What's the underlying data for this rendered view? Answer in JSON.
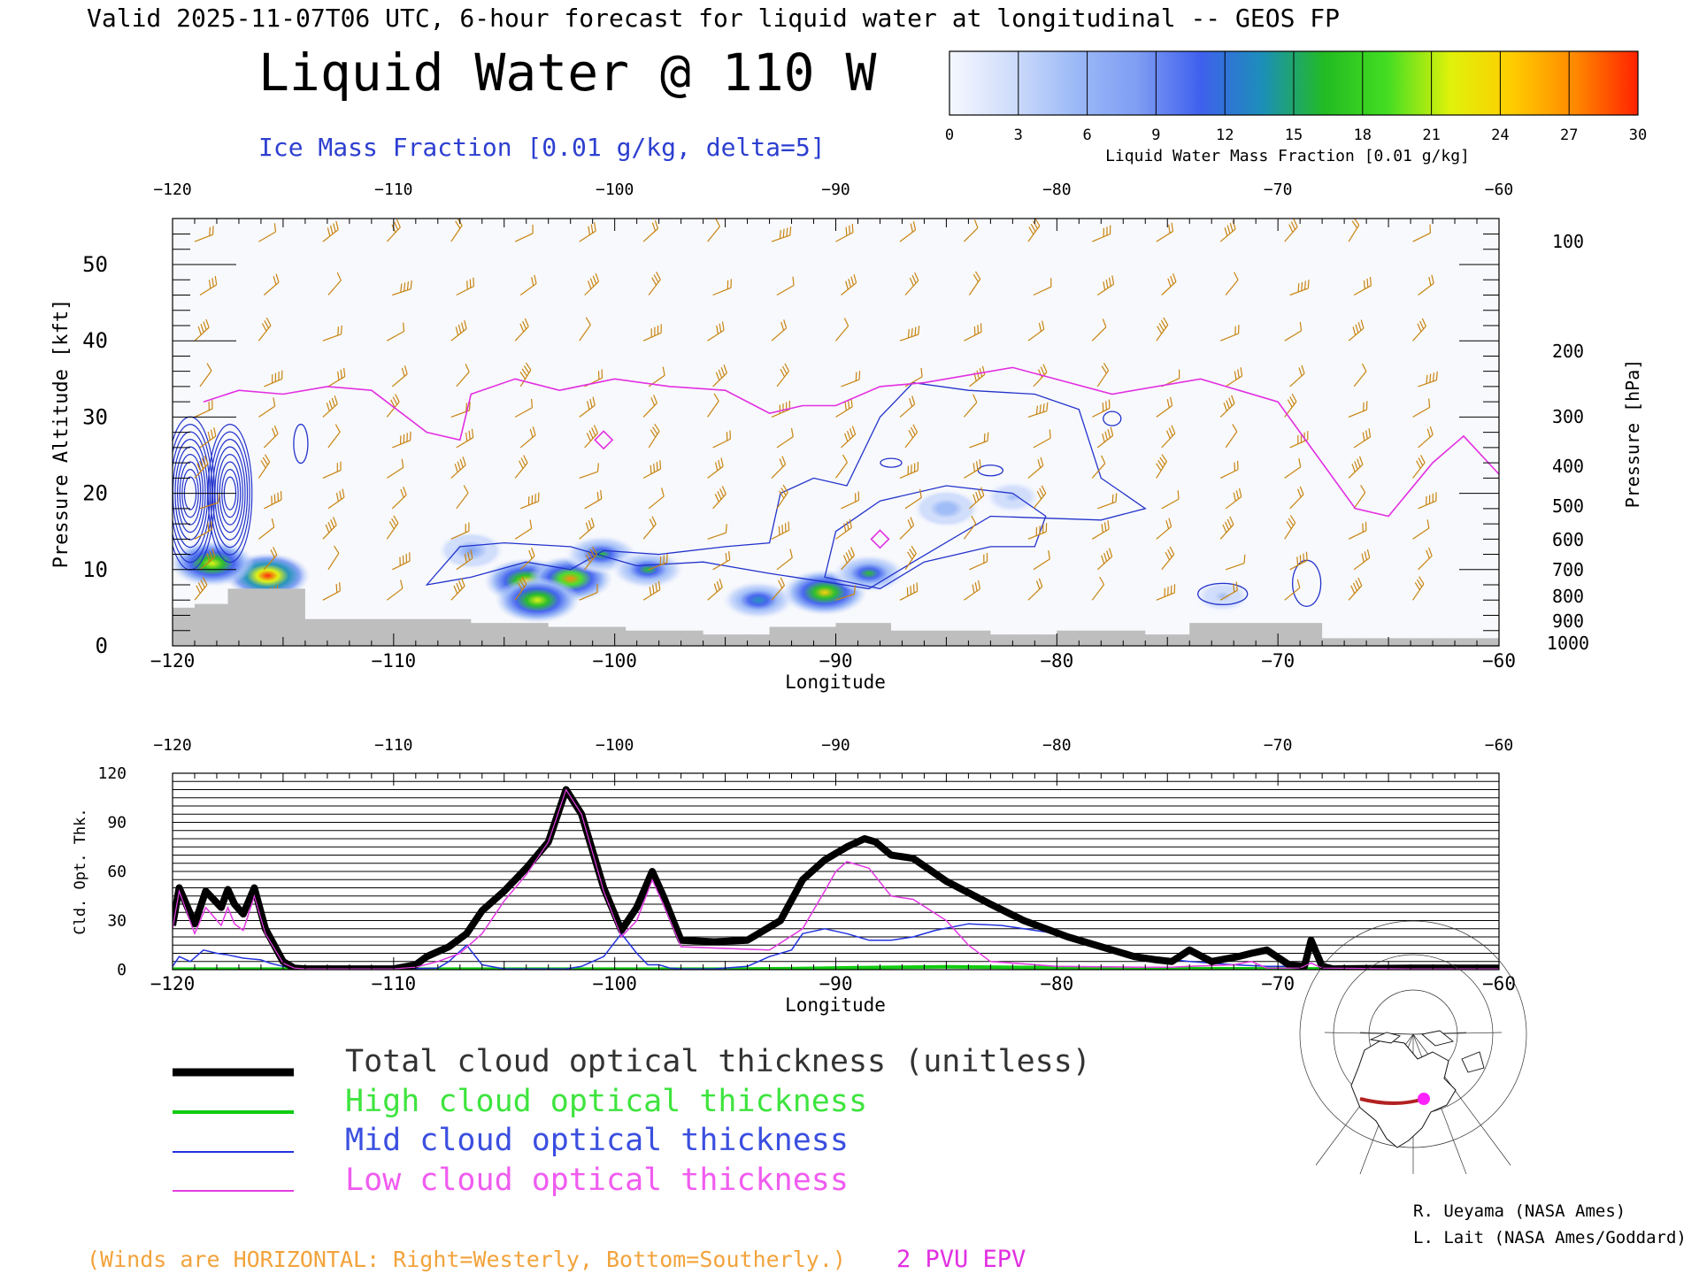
{
  "header": {
    "valid_line": "Valid 2025-11-07T06 UTC, 6-hour forecast for liquid water at longitudinal -- GEOS FP",
    "title": "Liquid Water @ 110 W",
    "subtitle": "Ice Mass Fraction [0.01 g/kg, delta=5]"
  },
  "colorbar": {
    "ticks": [
      "0",
      "3",
      "6",
      "9",
      "12",
      "15",
      "18",
      "21",
      "24",
      "27",
      "30"
    ],
    "label": "Liquid Water Mass Fraction [0.01 g/kg]",
    "colors": [
      "#f6f8ff",
      "#cfdcfb",
      "#9cbaf7",
      "#7f9df3",
      "#3f60ee",
      "#1c8fb8",
      "#22bb22",
      "#44dd22",
      "#dff20a",
      "#ffcc00",
      "#ff8800",
      "#ff2200"
    ]
  },
  "colors": {
    "ice_contour": "#2233cc",
    "epv": "#e22fe2",
    "winds": "#c88411",
    "terrain": "#bebebe",
    "total": "#000000",
    "high": "#11cc11",
    "mid": "#2233dd",
    "low": "#e23de2"
  },
  "chart_data": [
    {
      "type": "heatmap",
      "xlabel": "Longitude",
      "ylabel_left": "Pressure Altitude [kft]",
      "ylabel_right": "Pressure [hPa]",
      "x_ticks": [
        "-120",
        "-110",
        "-100",
        "-90",
        "-80",
        "-70",
        "-60"
      ],
      "xlim": [
        -120,
        -60
      ],
      "ylim": [
        0,
        55
      ],
      "y_ticks_left": [
        "0",
        "10",
        "20",
        "30",
        "40",
        "50"
      ],
      "y_ticks_right": [
        "100",
        "200",
        "300",
        "400",
        "500",
        "600",
        "700",
        "800",
        "900",
        "1000"
      ],
      "liquid_water_blobs": [
        {
          "lon": -115.7,
          "alt": 9.2,
          "peak": 30
        },
        {
          "lon": -118.2,
          "alt": 10.8,
          "peak": 22
        },
        {
          "lon": -106.5,
          "alt": 12.5,
          "peak": 8
        },
        {
          "lon": -104.0,
          "alt": 8.5,
          "peak": 24
        },
        {
          "lon": -102.0,
          "alt": 8.8,
          "peak": 27
        },
        {
          "lon": -103.5,
          "alt": 6.0,
          "peak": 22
        },
        {
          "lon": -100.6,
          "alt": 12.0,
          "peak": 15
        },
        {
          "lon": -98.5,
          "alt": 10.0,
          "peak": 15
        },
        {
          "lon": -93.5,
          "alt": 6.0,
          "peak": 14
        },
        {
          "lon": -90.5,
          "alt": 7.0,
          "peak": 25
        },
        {
          "lon": -88.5,
          "alt": 9.5,
          "peak": 15
        },
        {
          "lon": -85.0,
          "alt": 18.0,
          "peak": 6
        },
        {
          "lon": -82.0,
          "alt": 19.5,
          "peak": 5
        },
        {
          "lon": -72.5,
          "alt": 6.5,
          "peak": 5
        }
      ],
      "ice_fraction_centers": [
        {
          "lon": -119.2,
          "alt": 20.0,
          "peak": 45
        },
        {
          "lon": -117.4,
          "alt": 20.0,
          "peak": 40
        }
      ],
      "epv_2pvu_altitude": {
        "lon": [
          -118.6,
          -117,
          -115,
          -113,
          -111,
          -108.5,
          -107,
          -106.5,
          -104.5,
          -102.5,
          -100,
          -97.5,
          -95,
          -93,
          -91.5,
          -90,
          -88,
          -86,
          -82,
          -77.5,
          -73.5,
          -70,
          -68.5,
          -66.5,
          -65,
          -63,
          -61.6,
          -60
        ],
        "alt": [
          32,
          33.5,
          33,
          34,
          33.5,
          28,
          27,
          33,
          35,
          33.5,
          35,
          34,
          33.5,
          30.5,
          31.5,
          31.5,
          34,
          34.5,
          36.5,
          33,
          35,
          32,
          26,
          18,
          17,
          24,
          27.5,
          22.5
        ]
      },
      "terrain_kft": {
        "lon": [
          -120,
          -119,
          -117.5,
          -114,
          -112.5,
          -109.5,
          -106.5,
          -103,
          -101,
          -99.5,
          -96,
          -93,
          -90,
          -87.5,
          -83,
          -80,
          -76,
          -74,
          -68,
          -65,
          -60
        ],
        "alt": [
          5,
          5.5,
          7.5,
          3.5,
          3.5,
          3.5,
          3,
          2.5,
          2.5,
          2,
          1.5,
          2.5,
          3,
          2,
          1.5,
          2,
          1.5,
          3,
          1,
          1,
          1
        ]
      },
      "caption_winds": "(Winds are HORIZONTAL: Right=Westerly, Bottom=Southerly.)",
      "caption_epv": "2 PVU EPV"
    },
    {
      "type": "line",
      "xlabel": "Longitude",
      "ylabel": "Cld. Opt. Thk.",
      "xlim": [
        -120,
        -60
      ],
      "ylim": [
        0,
        120
      ],
      "x_ticks": [
        "-120",
        "-110",
        "-100",
        "-90",
        "-80",
        "-70",
        "-60"
      ],
      "y_ticks": [
        "0",
        "30",
        "60",
        "90",
        "120"
      ],
      "series": [
        {
          "name": "Total cloud optical thickness (unitless)",
          "x": [
            -120,
            -119.7,
            -119,
            -118.5,
            -117.8,
            -117.5,
            -117.2,
            -116.8,
            -116.3,
            -115.8,
            -115,
            -114.5,
            -114,
            -112,
            -110,
            -109,
            -108.5,
            -107.5,
            -106.7,
            -106,
            -105,
            -104,
            -103,
            -102.2,
            -101.5,
            -100.5,
            -99.7,
            -99,
            -98.3,
            -97.8,
            -97,
            -95.5,
            -94,
            -92.5,
            -91.5,
            -90.5,
            -89.5,
            -88.7,
            -88.2,
            -87.5,
            -86.5,
            -85,
            -83,
            -81.5,
            -79.5,
            -78,
            -76.5,
            -75.5,
            -74.8,
            -74,
            -73,
            -72.2,
            -71.8,
            -71.2,
            -70.5,
            -69.5,
            -68.8,
            -68.5,
            -68,
            -67.5,
            -64,
            -60
          ],
          "y": [
            27,
            50,
            28,
            48,
            38,
            49,
            40,
            34,
            50,
            25,
            5,
            1,
            0.5,
            0.5,
            0.5,
            3,
            8,
            14,
            22,
            36,
            48,
            62,
            78,
            110,
            95,
            50,
            24,
            38,
            60,
            45,
            18,
            17,
            18,
            30,
            55,
            67,
            75,
            80,
            78,
            70,
            68,
            54,
            40,
            30,
            20,
            14,
            8,
            6,
            5,
            12,
            5,
            7,
            8,
            10,
            12,
            3,
            2,
            18,
            2,
            0.5,
            1,
            1
          ]
        },
        {
          "name": "High cloud optical thickness",
          "x": [
            -120,
            -95,
            -92,
            -89,
            -85,
            -80,
            -75,
            -60
          ],
          "y": [
            0.3,
            0.3,
            0.6,
            1.2,
            1.8,
            1.2,
            0.6,
            0.3
          ]
        },
        {
          "name": "Mid cloud optical thickness",
          "x": [
            -120,
            -119.7,
            -119.2,
            -118.6,
            -118,
            -117.5,
            -116.8,
            -116,
            -115.6,
            -115,
            -114,
            -110,
            -108,
            -107.5,
            -106.7,
            -106,
            -105,
            -103,
            -102.2,
            -101.5,
            -100.5,
            -99.7,
            -99,
            -98.5,
            -98,
            -97.5,
            -97,
            -95.5,
            -94,
            -93,
            -92,
            -91.5,
            -90.5,
            -89.5,
            -88.5,
            -87.5,
            -86.5,
            -85.5,
            -84,
            -82.5,
            -81.5,
            -80,
            -78,
            -76,
            -74,
            -72,
            -70.5,
            -69,
            -68.5,
            -68,
            -66,
            -60
          ],
          "y": [
            2,
            8,
            5,
            12,
            10,
            9,
            7,
            6,
            4,
            2,
            0.5,
            0.3,
            1,
            5,
            15,
            3,
            0.5,
            0.5,
            0.5,
            2,
            8,
            22,
            10,
            3,
            3,
            1,
            0.5,
            0.5,
            2,
            8,
            12,
            22,
            25,
            22,
            18,
            18,
            20,
            24,
            28,
            27,
            25,
            22,
            14,
            8,
            5,
            3,
            2,
            2,
            14,
            2,
            0.5,
            0.5
          ]
        },
        {
          "name": "Low cloud optical thickness",
          "x": [
            -120,
            -119.7,
            -119,
            -118.5,
            -117.8,
            -117.5,
            -117.2,
            -116.8,
            -116.3,
            -115.8,
            -115,
            -114.5,
            -114,
            -110,
            -109,
            -108,
            -107,
            -106,
            -105,
            -104,
            -103,
            -102.2,
            -101.5,
            -100.5,
            -99.7,
            -99,
            -98.3,
            -97.8,
            -97,
            -95,
            -93,
            -91.5,
            -90.5,
            -90,
            -89.5,
            -88.5,
            -87.5,
            -86.5,
            -85,
            -84,
            -83,
            -80,
            -76,
            -74.8,
            -74,
            -72,
            -71.2,
            -70.5,
            -69,
            -68.5,
            -68,
            -64,
            -60
          ],
          "y": [
            25,
            48,
            22,
            38,
            27,
            38,
            28,
            24,
            45,
            22,
            4,
            1,
            0.5,
            0.5,
            1.5,
            5,
            10,
            22,
            42,
            58,
            78,
            110,
            95,
            48,
            20,
            30,
            55,
            40,
            14,
            13,
            12,
            25,
            48,
            60,
            66,
            62,
            45,
            43,
            30,
            15,
            5,
            2,
            1.5,
            1.5,
            2,
            3,
            5,
            1,
            1,
            4,
            1,
            0.5,
            0.5
          ]
        }
      ]
    }
  ],
  "legend": {
    "items": [
      {
        "label": "Total cloud optical thickness (unitless)",
        "color": "#000000"
      },
      {
        "label": "High cloud optical thickness",
        "color": "#11cc11"
      },
      {
        "label": "Mid cloud optical thickness",
        "color": "#2233dd"
      },
      {
        "label": "Low cloud optical thickness",
        "color": "#e23de2"
      }
    ]
  },
  "credits": {
    "line1": "R. Ueyama (NASA Ames)",
    "line2": "L. Lait (NASA Ames/Goddard)"
  }
}
